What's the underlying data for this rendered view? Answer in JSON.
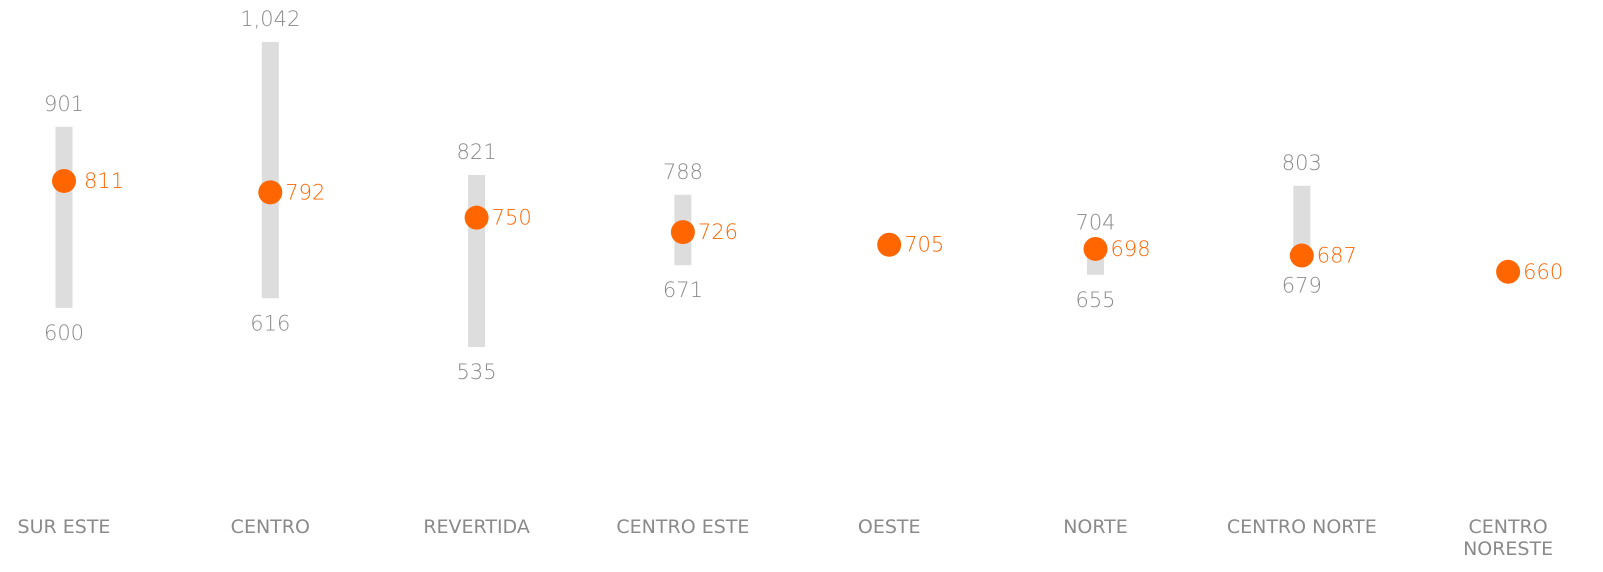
{
  "chart_data": {
    "type": "range-dot",
    "categories": [
      "SUR ESTE",
      "CENTRO",
      "REVERTIDA",
      "CENTRO ESTE",
      "OESTE",
      "NORTE",
      "CENTRO NORTE",
      "CENTRO NORESTE"
    ],
    "series": [
      {
        "color": "#dddddd",
        "values": [
          901,
          1042,
          821,
          788,
          null,
          704,
          803,
          null
        ],
        "value_labels": [
          "901",
          "1,042",
          "821",
          "788",
          null,
          "704",
          "803",
          null
        ]
      },
      {
        "color": "#dddddd",
        "values": [
          600,
          616,
          535,
          671,
          null,
          655,
          679,
          null
        ]
      },
      {
        "color": "#ff6600",
        "values": [
          811,
          792,
          750,
          726,
          705,
          698,
          687,
          660
        ]
      }
    ]
  }
}
